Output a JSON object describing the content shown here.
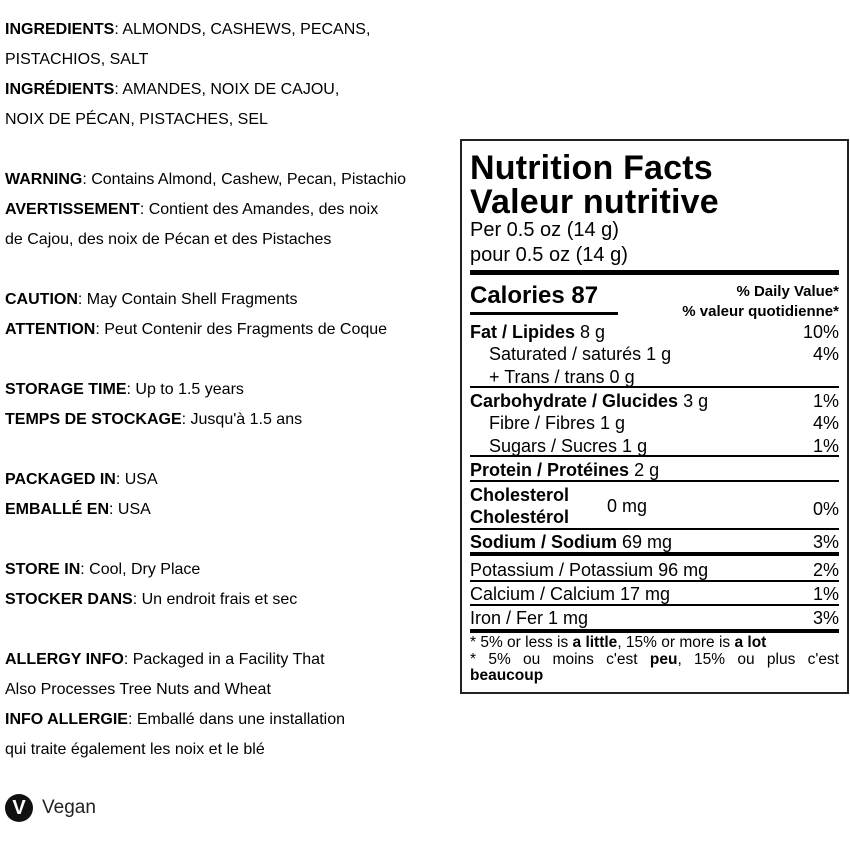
{
  "left": {
    "lines": [
      {
        "label": "INGREDIENTS",
        "text": ": ALMONDS, CASHEWS, PECANS,"
      },
      {
        "label": "",
        "text": "PISTACHIOS, SALT"
      },
      {
        "label": "INGRÉDIENTS",
        "text": ": AMANDES, NOIX DE CAJOU,"
      },
      {
        "label": "",
        "text": "NOIX DE PÉCAN, PISTACHES, SEL"
      },
      {
        "label": "WARNING",
        "text": ": Contains Almond, Cashew, Pecan, Pistachio"
      },
      {
        "label": "AVERTISSEMENT",
        "text": ": Contient des Amandes, des noix"
      },
      {
        "label": "",
        "text": "de Cajou, des noix de Pécan et des Pistaches"
      },
      {
        "label": "CAUTION",
        "text": ": May Contain Shell Fragments"
      },
      {
        "label": "ATTENTION",
        "text": ": Peut Contenir des Fragments de Coque"
      },
      {
        "label": "STORAGE TIME",
        "text": ": Up to 1.5 years"
      },
      {
        "label": "TEMPS DE STOCKAGE",
        "text": ": Jusqu'à 1.5 ans"
      },
      {
        "label": "PACKAGED IN",
        "text": ": USA"
      },
      {
        "label": "EMBALLÉ EN",
        "text": ": USA"
      },
      {
        "label": "STORE IN",
        "text": ": Cool, Dry Place"
      },
      {
        "label": "STOCKER DANS",
        "text": ": Un endroit frais et sec"
      },
      {
        "label": "ALLERGY INFO",
        "text": ": Packaged in a Facility That"
      },
      {
        "label": "",
        "text": "Also Processes Tree Nuts and Wheat"
      },
      {
        "label": "INFO ALLERGIE",
        "text": ": Emballé dans une installation"
      },
      {
        "label": "",
        "text": "qui traite également les noix et le blé"
      }
    ],
    "vegan": {
      "icon": "v-circle-icon",
      "glyph": "V",
      "label": "Vegan"
    }
  },
  "nutrition": {
    "title_en": "Nutrition Facts",
    "title_fr": "Valeur nutritive",
    "serving_en": "Per 0.5 oz (14 g)",
    "serving_fr": "pour 0.5 oz (14 g)",
    "calories": "Calories 87",
    "dv_en": "% Daily Value*",
    "dv_fr": "% valeur quotidienne*",
    "fat": {
      "label": "Fat / Lipides",
      "amount": "8 g",
      "dv": "10%"
    },
    "saturated": {
      "label": "Saturated / saturés 1 g",
      "dv": "4%"
    },
    "trans": {
      "label": "+ Trans / trans 0 g"
    },
    "carb": {
      "label": "Carbohydrate / Glucides",
      "amount": "3 g",
      "dv": "1%"
    },
    "fibre": {
      "label": "Fibre / Fibres 1 g",
      "dv": "4%"
    },
    "sugars": {
      "label": "Sugars / Sucres 1 g",
      "dv": "1%"
    },
    "protein": {
      "label": "Protein / Protéines",
      "amount": "2 g"
    },
    "cholesterol": {
      "label_en": "Cholesterol",
      "label_fr": "Cholestérol",
      "amount": "0 mg",
      "dv": "0%"
    },
    "sodium": {
      "label": "Sodium / Sodium",
      "amount": "69 mg",
      "dv": "3%"
    },
    "potassium": {
      "label": "Potassium / Potassium 96 mg",
      "dv": "2%"
    },
    "calcium": {
      "label": "Calcium / Calcium 17 mg",
      "dv": "1%"
    },
    "iron": {
      "label": "Iron / Fer 1 mg",
      "dv": "3%"
    },
    "footnote_en": {
      "a": "* 5% or less is ",
      "b": "a little",
      "c": ", 15% or more is ",
      "d": "a lot"
    },
    "footnote_fr": {
      "a": "* 5% ou moins c'est ",
      "b": "peu",
      "c": ", 15% ou plus c'est",
      "d": "beaucoup"
    }
  }
}
